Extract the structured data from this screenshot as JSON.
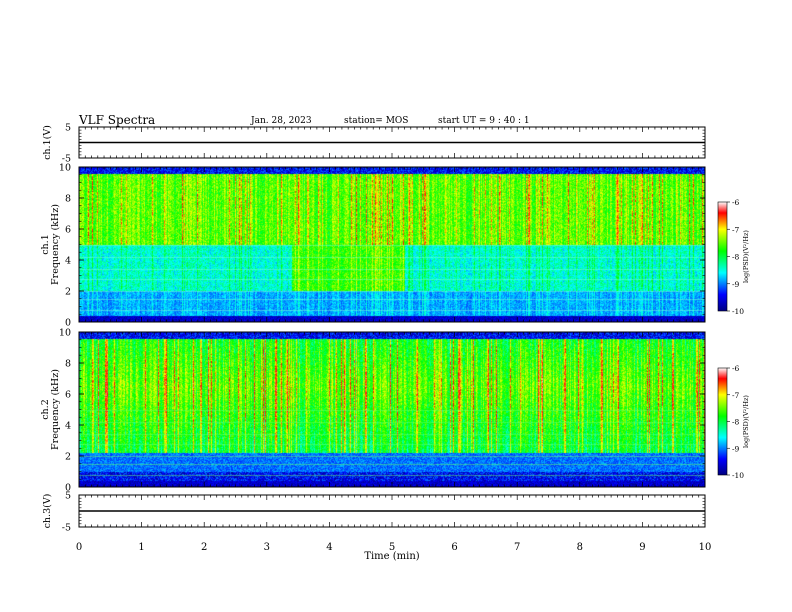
{
  "header": {
    "title": "VLF Spectra",
    "date": "Jan. 28, 2023",
    "station": "station= MOS",
    "start": "start  UT =   9 : 40 : 1"
  },
  "chart_data": [
    {
      "type": "line",
      "name": "ch1-waveform-panel",
      "ylabel": "ch.1(V)",
      "ylim": [
        -5,
        5
      ],
      "yticks": [
        "5",
        "-5"
      ],
      "x": [
        0,
        10
      ],
      "y": [
        0,
        0
      ]
    },
    {
      "type": "heatmap",
      "name": "ch1-spectrogram",
      "ylabel": "ch.1 Frequency (kHz)",
      "ylabel_line1": "ch.1",
      "ylabel_line2": "Frequency (kHz)",
      "xlim": [
        0,
        10
      ],
      "ylim": [
        0,
        10
      ],
      "yticks": [
        "0",
        "2",
        "4",
        "6",
        "8",
        "10"
      ],
      "colorbar": {
        "label": "log(PSD)(V²/Hz)",
        "range": [
          -10,
          -6
        ],
        "ticks": [
          "-6",
          "-7",
          "-8",
          "-9",
          "-10"
        ]
      }
    },
    {
      "type": "heatmap",
      "name": "ch2-spectrogram",
      "ylabel": "ch.2 Frequency (kHz)",
      "ylabel_line1": "ch.2",
      "ylabel_line2": "Frequency (kHz)",
      "xlim": [
        0,
        10
      ],
      "ylim": [
        0,
        10
      ],
      "yticks": [
        "0",
        "2",
        "4",
        "6",
        "8",
        "10"
      ],
      "colorbar": {
        "label": "log(PSD)(V²/Hz)",
        "range": [
          -10,
          -6
        ],
        "ticks": [
          "-6",
          "-7",
          "-8",
          "-9",
          "-10"
        ]
      }
    },
    {
      "type": "line",
      "name": "ch3-waveform-panel",
      "ylabel": "ch.3(V)",
      "ylim": [
        -5,
        5
      ],
      "yticks": [
        "5",
        "-5"
      ],
      "x": [
        0,
        10
      ],
      "y": [
        0,
        0
      ]
    }
  ],
  "xaxis": {
    "label": "Time (min)",
    "ticks": [
      "0",
      "1",
      "2",
      "3",
      "4",
      "5",
      "6",
      "7",
      "8",
      "9",
      "10"
    ]
  }
}
